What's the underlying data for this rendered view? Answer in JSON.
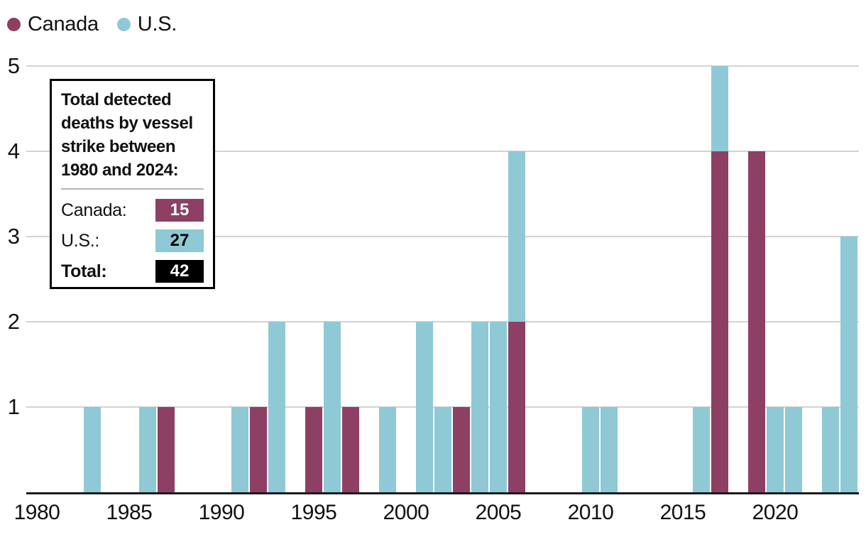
{
  "page": {
    "background": "#ffffff"
  },
  "colors": {
    "canada": "#8d4063",
    "us": "#8fc9d5",
    "gridline": "#d3d3d3",
    "axis": "#1b1b1b",
    "text": "#111111",
    "badge_black": "#000000"
  },
  "legend": {
    "items": [
      {
        "label": "Canada",
        "color": "#8d4063"
      },
      {
        "label": "U.S.",
        "color": "#8fc9d5"
      }
    ]
  },
  "annotation": {
    "title_lines": [
      "Total detected",
      "deaths by vessel",
      "strike between",
      "1980 and 2024:"
    ],
    "rows": [
      {
        "label": "Canada:",
        "value": "15",
        "badge_color": "#8d4063",
        "value_color": "#ffffff",
        "bold_label": false
      },
      {
        "label": "U.S.:",
        "value": "27",
        "badge_color": "#8fc9d5",
        "value_color": "#000000",
        "bold_label": false
      },
      {
        "label": "Total:",
        "value": "42",
        "badge_color": "#000000",
        "value_color": "#ffffff",
        "bold_label": true
      }
    ]
  },
  "chart_data": {
    "type": "bar",
    "stacked": true,
    "title": "Total detected deaths by vessel strike between 1980 and 2024",
    "xlabel": "",
    "ylabel": "",
    "years": [
      1980,
      1981,
      1982,
      1983,
      1984,
      1985,
      1986,
      1987,
      1988,
      1989,
      1990,
      1991,
      1992,
      1993,
      1994,
      1995,
      1996,
      1997,
      1998,
      1999,
      2000,
      2001,
      2002,
      2003,
      2004,
      2005,
      2006,
      2007,
      2008,
      2009,
      2010,
      2011,
      2012,
      2013,
      2014,
      2015,
      2016,
      2017,
      2018,
      2019,
      2020,
      2021,
      2022,
      2023,
      2024
    ],
    "series": [
      {
        "name": "Canada",
        "color": "#8d4063",
        "values": [
          0,
          0,
          0,
          0,
          0,
          0,
          0,
          1,
          0,
          0,
          0,
          0,
          1,
          0,
          0,
          1,
          0,
          1,
          0,
          0,
          0,
          0,
          0,
          1,
          0,
          0,
          2,
          0,
          0,
          0,
          0,
          0,
          0,
          0,
          0,
          0,
          0,
          4,
          0,
          4,
          0,
          0,
          0,
          0,
          0
        ]
      },
      {
        "name": "U.S.",
        "color": "#8fc9d5",
        "values": [
          0,
          0,
          0,
          1,
          0,
          0,
          1,
          0,
          0,
          0,
          0,
          1,
          0,
          2,
          0,
          0,
          2,
          0,
          0,
          1,
          0,
          2,
          1,
          0,
          2,
          2,
          2,
          0,
          0,
          0,
          1,
          1,
          0,
          0,
          0,
          0,
          1,
          1,
          0,
          0,
          1,
          1,
          0,
          1,
          3
        ]
      }
    ],
    "stack_order_bottom_to_top": [
      "Canada",
      "U.S."
    ],
    "totals": {
      "Canada": 15,
      "U.S.": 27,
      "Total": 42
    },
    "ylim": [
      0,
      5
    ],
    "yticks": [
      1,
      2,
      3,
      4,
      5
    ],
    "xticks": [
      1980,
      1985,
      1990,
      1995,
      2000,
      2005,
      2010,
      2015,
      2020
    ],
    "grid": true,
    "legend_position": "top-left"
  }
}
